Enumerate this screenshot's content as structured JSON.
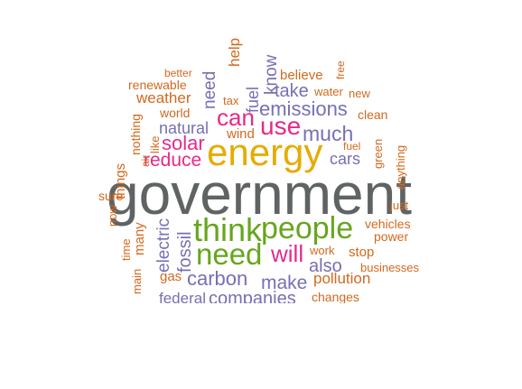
{
  "colors": {
    "grey": "#5f6363",
    "orange": "#d2691e",
    "purple": "#7570b3",
    "magenta": "#e7298a",
    "green": "#66a61e",
    "gold": "#e6ab02"
  },
  "words": [
    {
      "text": "government",
      "color": "grey"
    },
    {
      "text": "energy",
      "color": "gold"
    },
    {
      "text": "think",
      "color": "green"
    },
    {
      "text": "people",
      "color": "green"
    },
    {
      "text": "need",
      "color": "green"
    },
    {
      "text": "will",
      "color": "magenta"
    },
    {
      "text": "use",
      "color": "magenta"
    },
    {
      "text": "can",
      "color": "magenta"
    },
    {
      "text": "reduce",
      "color": "magenta"
    },
    {
      "text": "solar",
      "color": "magenta"
    },
    {
      "text": "emissions",
      "color": "purple"
    },
    {
      "text": "much",
      "color": "purple"
    },
    {
      "text": "take",
      "color": "purple"
    },
    {
      "text": "make",
      "color": "purple"
    },
    {
      "text": "carbon",
      "color": "purple"
    },
    {
      "text": "also",
      "color": "purple"
    },
    {
      "text": "fossil",
      "color": "purple"
    },
    {
      "text": "electric",
      "color": "purple"
    },
    {
      "text": "companies",
      "color": "purple"
    },
    {
      "text": "federal",
      "color": "purple"
    },
    {
      "text": "natural",
      "color": "purple"
    },
    {
      "text": "cars",
      "color": "purple"
    },
    {
      "text": "need",
      "color": "purple"
    },
    {
      "text": "fuel",
      "color": "purple"
    },
    {
      "text": "know",
      "color": "purple"
    },
    {
      "text": "weather",
      "color": "orange"
    },
    {
      "text": "renewable",
      "color": "orange"
    },
    {
      "text": "world",
      "color": "orange"
    },
    {
      "text": "wind",
      "color": "orange"
    },
    {
      "text": "believe",
      "color": "orange"
    },
    {
      "text": "water",
      "color": "orange"
    },
    {
      "text": "new",
      "color": "orange"
    },
    {
      "text": "clean",
      "color": "orange"
    },
    {
      "text": "fuel",
      "color": "orange"
    },
    {
      "text": "green",
      "color": "orange"
    },
    {
      "text": "anything",
      "color": "orange"
    },
    {
      "text": "just",
      "color": "orange"
    },
    {
      "text": "vehicles",
      "color": "orange"
    },
    {
      "text": "power",
      "color": "orange"
    },
    {
      "text": "stop",
      "color": "orange"
    },
    {
      "text": "work",
      "color": "orange"
    },
    {
      "text": "pollution",
      "color": "orange"
    },
    {
      "text": "businesses",
      "color": "orange"
    },
    {
      "text": "changes",
      "color": "orange"
    },
    {
      "text": "gas",
      "color": "orange"
    },
    {
      "text": "many",
      "color": "orange"
    },
    {
      "text": "main",
      "color": "orange"
    },
    {
      "text": "time",
      "color": "orange"
    },
    {
      "text": "things",
      "color": "orange"
    },
    {
      "text": "sure",
      "color": "orange"
    },
    {
      "text": "nothing",
      "color": "orange"
    },
    {
      "text": "like",
      "color": "orange"
    },
    {
      "text": "air",
      "color": "orange"
    },
    {
      "text": "tax",
      "color": "orange"
    },
    {
      "text": "help",
      "color": "orange"
    },
    {
      "text": "better",
      "color": "orange"
    },
    {
      "text": "free",
      "color": "orange"
    },
    {
      "text": "now",
      "color": "orange"
    }
  ]
}
